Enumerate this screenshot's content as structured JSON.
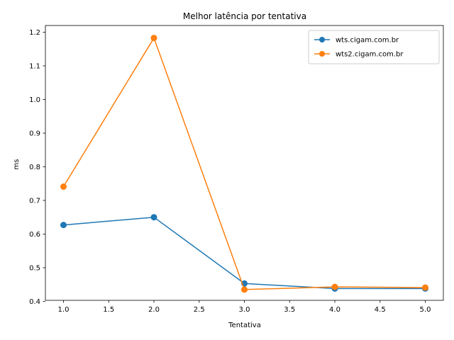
{
  "chart_data": {
    "type": "line",
    "title": "Melhor latência por tentativa",
    "xlabel": "Tentativa",
    "ylabel": "ms",
    "xlim": [
      0.8,
      5.2
    ],
    "ylim": [
      0.403,
      1.22
    ],
    "xticks": [
      1.0,
      1.5,
      2.0,
      2.5,
      3.0,
      3.5,
      4.0,
      4.5,
      5.0
    ],
    "xtick_labels": [
      "1.0",
      "1.5",
      "2.0",
      "2.5",
      "3.0",
      "3.5",
      "4.0",
      "4.5",
      "5.0"
    ],
    "yticks": [
      0.4,
      0.5,
      0.6,
      0.7,
      0.8,
      0.9,
      1.0,
      1.1,
      1.2
    ],
    "ytick_labels": [
      "0.4",
      "0.5",
      "0.6",
      "0.7",
      "0.8",
      "0.9",
      "1.0",
      "1.1",
      "1.2"
    ],
    "x": [
      1,
      2,
      3,
      4,
      5
    ],
    "series": [
      {
        "name": "wts.cigam.com.br",
        "color": "#1f77b4",
        "values": [
          0.627,
          0.65,
          0.453,
          0.438,
          0.438
        ]
      },
      {
        "name": "wts2.cigam.com.br",
        "color": "#ff7f0e",
        "values": [
          0.741,
          1.183,
          0.435,
          0.443,
          0.441
        ]
      }
    ],
    "legend": "top-right",
    "grid": false
  }
}
